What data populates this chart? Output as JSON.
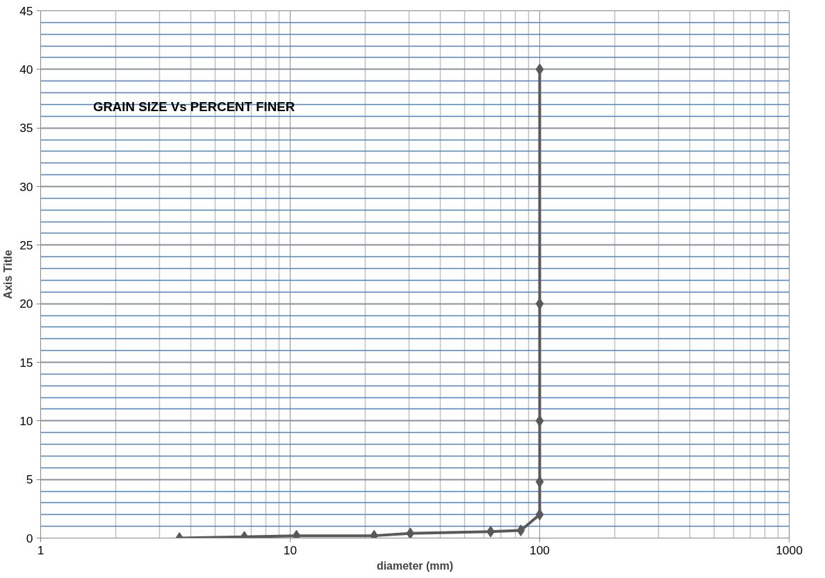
{
  "chart_data": {
    "type": "line",
    "title": "GRAIN SIZE Vs PERCENT FINER",
    "xlabel": "diameter (mm)",
    "ylabel": "Axis Title",
    "x": [
      3.6,
      6.55,
      10.6,
      21.7,
      30.3,
      63.6,
      84,
      100,
      100,
      100,
      100,
      100
    ],
    "series": [
      {
        "color": "#595959",
        "values": [
          0,
          0.1,
          0.2,
          0.2,
          0.4,
          0.55,
          0.65,
          2,
          4.8,
          10,
          20,
          40
        ]
      }
    ],
    "log": "x",
    "xlim": [
      1,
      1000
    ],
    "xticks": [
      1,
      10,
      100,
      1000
    ],
    "ylim": [
      0,
      45
    ],
    "yticks": [
      0,
      5,
      10,
      15,
      20,
      25,
      30,
      35,
      40,
      45
    ],
    "grid": true,
    "marker": "diamond",
    "line_style": "solid"
  }
}
